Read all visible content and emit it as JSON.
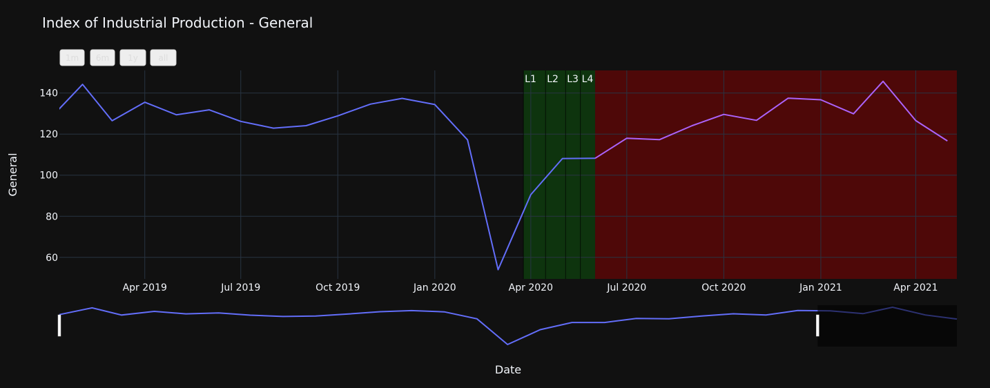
{
  "chart_data": {
    "type": "line",
    "title": "Index of Industrial Production - General",
    "xlabel": "Date",
    "ylabel": "General",
    "range_buttons": [
      "1m",
      "6m",
      "1y",
      "all"
    ],
    "x_ticks": [
      "Apr 2019",
      "Jul 2019",
      "Oct 2019",
      "Jan 2020",
      "Apr 2020",
      "Jul 2020",
      "Oct 2020",
      "Jan 2021",
      "Apr 2021"
    ],
    "y_ticks": [
      60,
      80,
      100,
      120,
      140
    ],
    "ylim": [
      49.5,
      151
    ],
    "xlim": [
      "2019-01-10",
      "2021-05-10"
    ],
    "series": [
      {
        "color": "#636efa",
        "x": [
          "2019-01-01",
          "2019-02-01",
          "2019-03-01",
          "2019-04-01",
          "2019-05-01",
          "2019-06-01",
          "2019-07-01",
          "2019-08-01",
          "2019-09-01",
          "2019-10-01",
          "2019-11-01",
          "2019-12-01",
          "2020-01-01",
          "2020-02-01",
          "2020-03-01",
          "2020-04-01",
          "2020-05-01",
          "2020-06-01"
        ],
        "y": [
          127.5,
          144.2,
          126.5,
          135.5,
          129.4,
          131.8,
          126.2,
          122.9,
          124.1,
          128.9,
          134.6,
          137.4,
          134.4,
          117.2,
          54.0,
          90.5,
          108.1,
          108.2
        ]
      },
      {
        "color": "#ab63fa",
        "x": [
          "2020-06-01",
          "2020-07-01",
          "2020-08-01",
          "2020-09-01",
          "2020-10-01",
          "2020-11-01",
          "2020-12-01",
          "2021-01-01",
          "2021-02-01",
          "2021-03-01",
          "2021-04-01",
          "2021-05-01"
        ],
        "y": [
          108.2,
          118.0,
          117.3,
          124.1,
          129.6,
          126.7,
          137.5,
          136.7,
          129.9,
          145.7,
          126.6,
          116.7
        ]
      }
    ],
    "shaded_regions": [
      {
        "start": "2020-03-25",
        "end": "2020-06-01",
        "color": "#0e4d0e",
        "opacity": 0.6
      },
      {
        "start": "2020-06-01",
        "end": "2021-05-10",
        "color": "#8b0000",
        "opacity": 0.5
      }
    ],
    "markers": [
      {
        "label": "L1",
        "date": "2020-03-25"
      },
      {
        "label": "L2",
        "date": "2020-04-15"
      },
      {
        "label": "L3",
        "date": "2020-05-04"
      },
      {
        "label": "L4",
        "date": "2020-05-18"
      }
    ],
    "rangeslider": {
      "selected_end": "2020-12-20"
    }
  }
}
